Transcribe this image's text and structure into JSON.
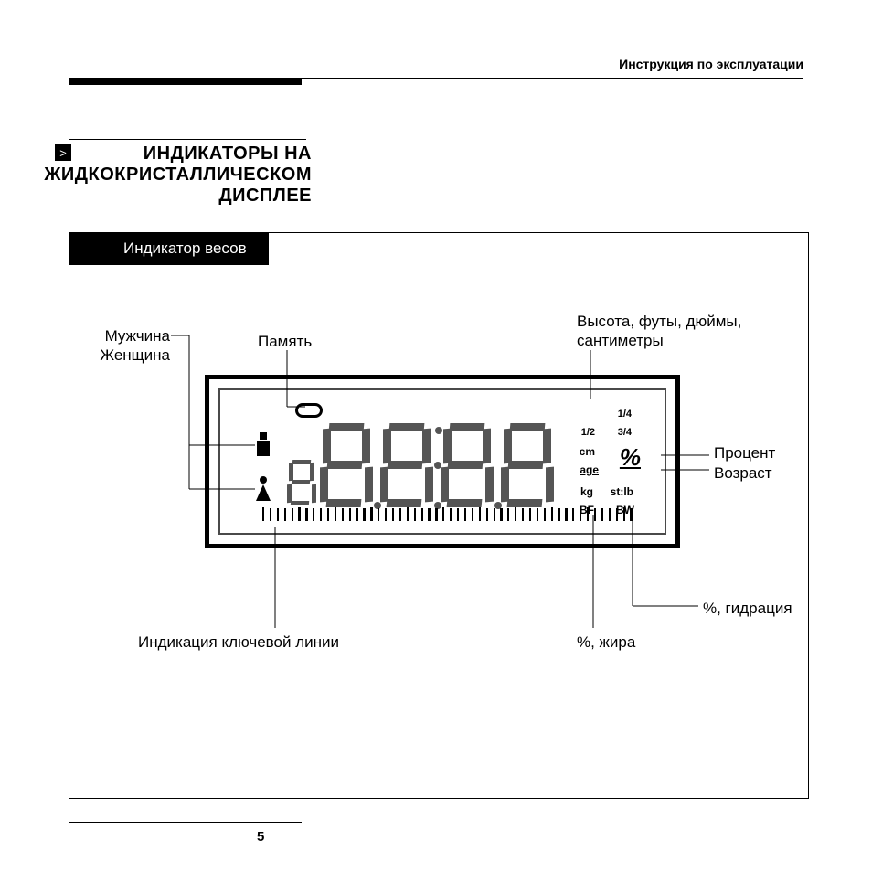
{
  "header": {
    "doctype": "Инструкция по эксплуатации"
  },
  "title": {
    "line1": "ИНДИКАТОРЫ НА",
    "line2": "ЖИДКОКРИСТАЛЛИЧЕСКОМ",
    "line3": "ДИСПЛЕЕ"
  },
  "tab": "Индикатор весов",
  "labels": {
    "gender_m": "Мужчина",
    "gender_f": "Женщина",
    "memory": "Память",
    "height": "Высота, футы, дюймы,\nсантиметры",
    "percent": "Процент",
    "age": "Возраст",
    "hydration": "%, гидрация",
    "fat": "%, жира",
    "baseline": "Индикация ключевой линии"
  },
  "lcd": {
    "fractions": {
      "q1": "1/4",
      "q2": "1/2",
      "q3": "3/4"
    },
    "units": {
      "cm": "cm",
      "age": "age",
      "kg": "kg",
      "stlb": "st:lb",
      "bf": "BF",
      "bw": "BW"
    },
    "percent_sign": "%"
  },
  "page": "5",
  "colors": {
    "text": "#000000",
    "seg": "#555555",
    "bg": "#ffffff"
  }
}
